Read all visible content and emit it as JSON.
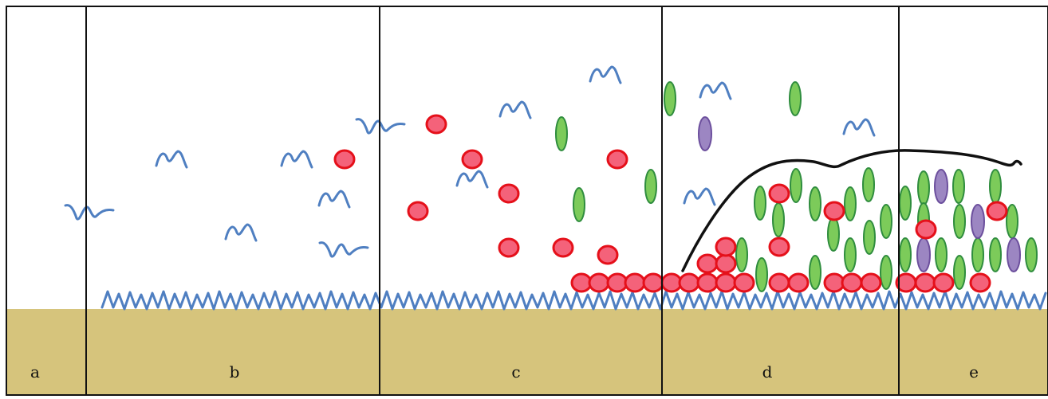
{
  "colors": {
    "background": "#ffffff",
    "substrate": "#d6c47c",
    "conditioning_film": "#4f7fc1",
    "red_cell_fill": "#f4627a",
    "red_cell_stroke": "#e5101a",
    "green_cell_fill": "#7ccb5a",
    "green_cell_stroke": "#2f8d3e",
    "purple_cell_fill": "#9c86c2",
    "purple_cell_stroke": "#6c4f9d",
    "matrix_line": "#111111",
    "panel_divider": "#111111"
  },
  "panels": [
    {
      "label": "a"
    },
    {
      "label": "b"
    },
    {
      "label": "c"
    },
    {
      "label": "d"
    },
    {
      "label": "e"
    }
  ]
}
